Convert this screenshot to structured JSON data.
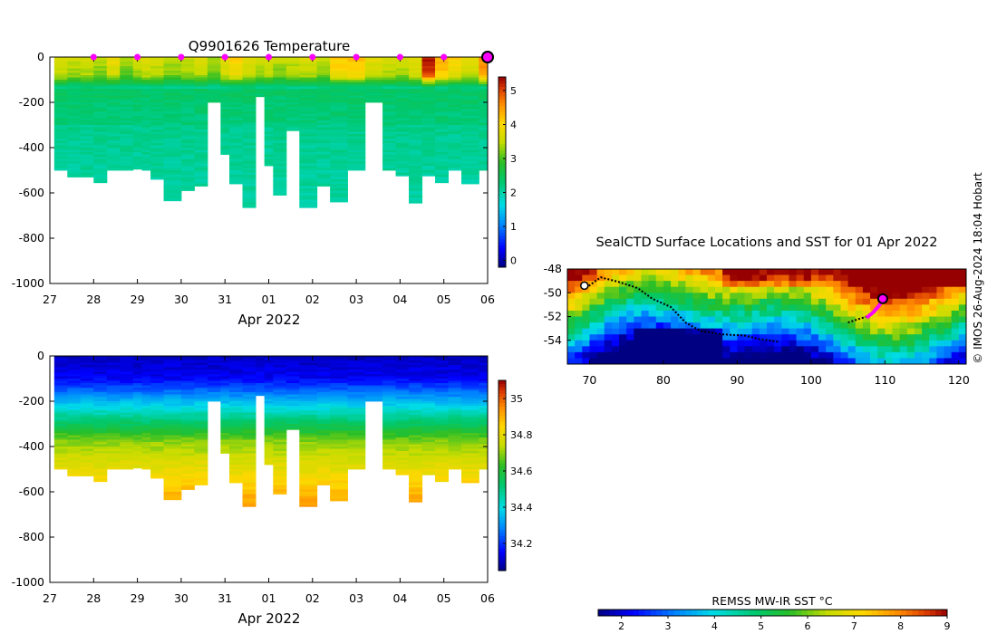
{
  "figure": {
    "credit": "© IMOS 26-Aug-2024 18:04 Hobart"
  },
  "chart_data": [
    {
      "type": "heatmap",
      "id": "temperature",
      "title": "Q9901626  Temperature",
      "xlabel": "Apr 2022",
      "ylabel": "",
      "x_tick_labels": [
        "27",
        "28",
        "29",
        "30",
        "31",
        "01",
        "02",
        "03",
        "04",
        "05",
        "06"
      ],
      "x_tick_values": [
        27,
        28,
        29,
        30,
        31,
        32,
        33,
        34,
        35,
        36,
        37
      ],
      "xlim": [
        27,
        37
      ],
      "y_tick_values": [
        0,
        -200,
        -400,
        -600,
        -800,
        -1000
      ],
      "ylim": [
        -1000,
        0
      ],
      "colorbar": {
        "min": -0.2,
        "max": 5.4,
        "ticks": [
          0,
          1,
          2,
          3,
          4,
          5
        ]
      },
      "surface_markers_x": [
        28,
        29,
        30,
        31,
        32,
        33,
        34,
        35,
        36
      ],
      "latest_marker_x": 37,
      "profiles": [
        {
          "t": 27.1,
          "depth": 500,
          "sst": 3.8
        },
        {
          "t": 27.4,
          "depth": 530,
          "sst": 3.6
        },
        {
          "t": 27.7,
          "depth": 530,
          "sst": 3.7
        },
        {
          "t": 28.0,
          "depth": 555,
          "sst": 3.5
        },
        {
          "t": 28.3,
          "depth": 500,
          "sst": 3.9
        },
        {
          "t": 28.6,
          "depth": 500,
          "sst": 3.4
        },
        {
          "t": 28.9,
          "depth": 495,
          "sst": 3.6
        },
        {
          "t": 29.1,
          "depth": 500,
          "sst": 3.8
        },
        {
          "t": 29.3,
          "depth": 540,
          "sst": 3.7
        },
        {
          "t": 29.6,
          "depth": 635,
          "sst": 3.5
        },
        {
          "t": 30.0,
          "depth": 590,
          "sst": 3.6
        },
        {
          "t": 30.3,
          "depth": 570,
          "sst": 3.7
        },
        {
          "t": 30.6,
          "depth": 200,
          "sst": 3.4
        },
        {
          "t": 30.9,
          "depth": 430,
          "sst": 3.9
        },
        {
          "t": 31.1,
          "depth": 560,
          "sst": 4.1
        },
        {
          "t": 31.4,
          "depth": 665,
          "sst": 3.8
        },
        {
          "t": 31.7,
          "depth": 175,
          "sst": 3.6
        },
        {
          "t": 31.9,
          "depth": 480,
          "sst": 3.7
        },
        {
          "t": 32.1,
          "depth": 610,
          "sst": 3.5
        },
        {
          "t": 32.4,
          "depth": 325,
          "sst": 3.6
        },
        {
          "t": 32.7,
          "depth": 665,
          "sst": 3.7
        },
        {
          "t": 33.1,
          "depth": 570,
          "sst": 3.5
        },
        {
          "t": 33.4,
          "depth": 640,
          "sst": 4.2
        },
        {
          "t": 33.8,
          "depth": 500,
          "sst": 4.3
        },
        {
          "t": 34.2,
          "depth": 200,
          "sst": 3.8
        },
        {
          "t": 34.6,
          "depth": 500,
          "sst": 3.7
        },
        {
          "t": 34.9,
          "depth": 525,
          "sst": 3.6
        },
        {
          "t": 35.2,
          "depth": 645,
          "sst": 3.9
        },
        {
          "t": 35.5,
          "depth": 525,
          "sst": 5.3
        },
        {
          "t": 35.8,
          "depth": 555,
          "sst": 4.4
        },
        {
          "t": 36.1,
          "depth": 500,
          "sst": 4.1
        },
        {
          "t": 36.4,
          "depth": 560,
          "sst": 3.8
        },
        {
          "t": 36.8,
          "depth": 500,
          "sst": 4.7
        }
      ]
    },
    {
      "type": "heatmap",
      "id": "salinity",
      "title": "",
      "xlabel": "Apr 2022",
      "ylabel": "",
      "x_tick_labels": [
        "27",
        "28",
        "29",
        "30",
        "31",
        "01",
        "02",
        "03",
        "04",
        "05",
        "06"
      ],
      "x_tick_values": [
        27,
        28,
        29,
        30,
        31,
        32,
        33,
        34,
        35,
        36,
        37
      ],
      "xlim": [
        27,
        37
      ],
      "y_tick_values": [
        0,
        -200,
        -400,
        -600,
        -800,
        -1000
      ],
      "ylim": [
        -1000,
        0
      ],
      "colorbar": {
        "min": 34.05,
        "max": 35.1,
        "ticks": [
          34.2,
          34.4,
          34.6,
          34.8,
          35
        ]
      }
    },
    {
      "type": "heatmap",
      "id": "sst_map",
      "title": "SealCTD Surface Locations and SST for 01 Apr 2022",
      "xlabel": "",
      "ylabel": "",
      "x_tick_values": [
        70,
        80,
        90,
        100,
        110,
        120
      ],
      "y_tick_values": [
        -48,
        -50,
        -52,
        -54
      ],
      "xlim": [
        67,
        121
      ],
      "ylim": [
        -56,
        -48
      ],
      "colorbar": {
        "label": "REMSS MW-IR SST °C",
        "min": 1.5,
        "max": 9,
        "ticks": [
          2,
          3,
          4,
          5,
          6,
          7,
          8,
          9
        ]
      },
      "track": [
        [
          69.5,
          -49.6
        ],
        [
          71.5,
          -48.7
        ],
        [
          74,
          -49.1
        ],
        [
          76.5,
          -49.6
        ],
        [
          78.5,
          -50.5
        ],
        [
          81,
          -51.2
        ],
        [
          83,
          -52.5
        ],
        [
          85,
          -53.2
        ],
        [
          88,
          -53.5
        ],
        [
          91,
          -53.6
        ],
        [
          93,
          -53.9
        ],
        [
          95.5,
          -54.1
        ]
      ],
      "track_east": [
        [
          105,
          -52.5
        ],
        [
          106.5,
          -52.2
        ],
        [
          107.5,
          -52
        ]
      ],
      "recent_track": [
        [
          107.5,
          -52.1
        ],
        [
          108.5,
          -51.6
        ],
        [
          109.3,
          -51
        ],
        [
          109.7,
          -50.5
        ]
      ],
      "current_position": [
        109.7,
        -50.5
      ]
    }
  ]
}
